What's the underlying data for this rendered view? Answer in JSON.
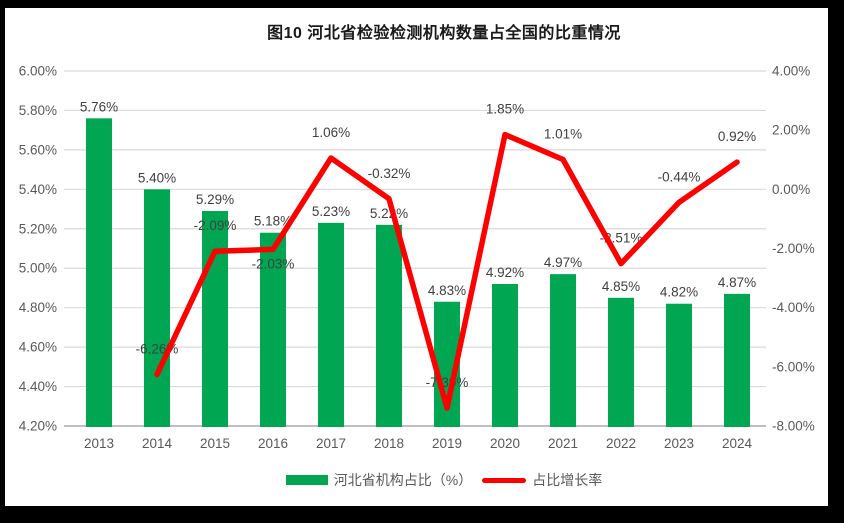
{
  "chart_data": {
    "type": "combo-bar-line",
    "title": "图10  河北省检验检测机构数量占全国的比重情况",
    "categories": [
      "2013",
      "2014",
      "2015",
      "2016",
      "2017",
      "2018",
      "2019",
      "2020",
      "2021",
      "2022",
      "2023",
      "2024"
    ],
    "series": [
      {
        "name": "河北省机构占比（%）",
        "type": "bar",
        "axis": "left",
        "values": [
          5.76,
          5.4,
          5.29,
          5.18,
          5.23,
          5.22,
          4.83,
          4.92,
          4.97,
          4.85,
          4.82,
          4.87
        ],
        "labels": [
          "5.76%",
          "5.40%",
          "5.29%",
          "5.18%",
          "5.23%",
          "5.22%",
          "4.83%",
          "4.92%",
          "4.97%",
          "4.85%",
          "4.82%",
          "4.87%"
        ]
      },
      {
        "name": "占比增长率",
        "type": "line",
        "axis": "right",
        "values": [
          null,
          -6.26,
          -2.09,
          -2.03,
          1.06,
          -0.32,
          -7.39,
          1.85,
          1.01,
          -2.51,
          -0.44,
          0.92
        ],
        "labels": [
          null,
          "-6.26%",
          "-2.09%",
          "-2.03%",
          "1.06%",
          "-0.32%",
          "-7.39%",
          "1.85%",
          "1.01%",
          "-2.51%",
          "-0.44%",
          "0.92%"
        ],
        "label_positions": [
          null,
          "above",
          "above",
          "below",
          "above",
          "above",
          "above",
          "above",
          "above",
          "above",
          "above",
          "above"
        ]
      }
    ],
    "left_axis": {
      "min": 4.2,
      "max": 6.0,
      "step": 0.2,
      "ticks": [
        "6.00%",
        "5.80%",
        "5.60%",
        "5.40%",
        "5.20%",
        "5.00%",
        "4.80%",
        "4.60%",
        "4.40%",
        "4.20%"
      ]
    },
    "right_axis": {
      "min": -8.0,
      "max": 4.0,
      "step": 2.0,
      "ticks": [
        "4.00%",
        "2.00%",
        "0.00%",
        "-2.00%",
        "-4.00%",
        "-6.00%",
        "-8.00%"
      ]
    },
    "grid": true,
    "legend_position": "bottom",
    "xlabel": "",
    "ylabel": ""
  },
  "colors": {
    "bar_green": "#00A651",
    "line_red": "#FF0000",
    "gridline": "#D9D9D9",
    "axis_line": "#BFBFBF",
    "axis_text": "#595959",
    "data_label": "#404040",
    "title_text": "#1A1A1A",
    "frame": "#000000",
    "background": "#FFFFFF"
  }
}
